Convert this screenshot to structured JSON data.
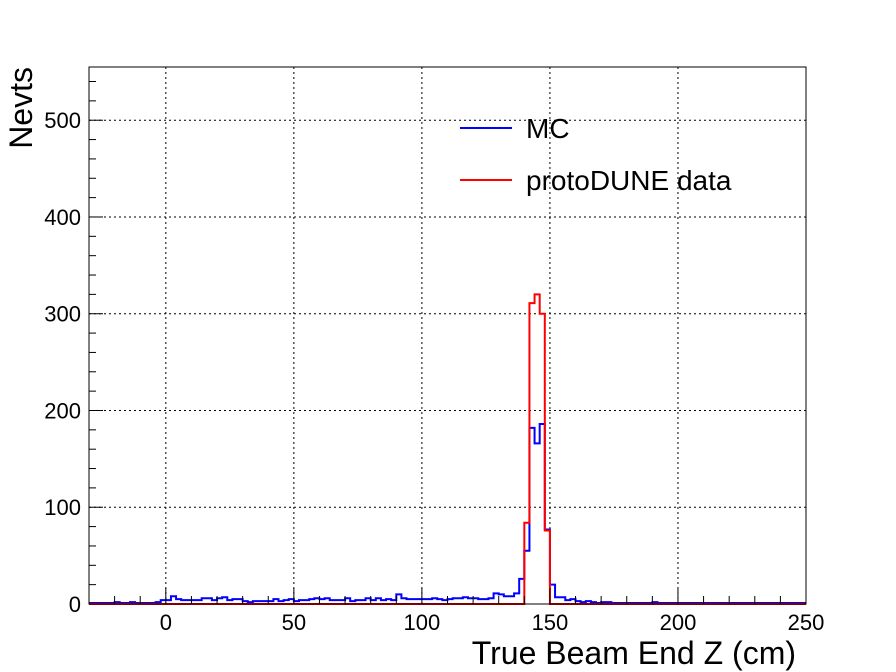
{
  "chart_data": {
    "type": "line",
    "title": "",
    "xlabel": "True Beam End Z (cm)",
    "ylabel": "Nevts",
    "xlim": [
      -30,
      250
    ],
    "ylim": [
      0,
      555
    ],
    "x_ticks": [
      0,
      50,
      100,
      150,
      200,
      250
    ],
    "x_tick_labels": [
      "0",
      "50",
      "100",
      "150",
      "200",
      "250"
    ],
    "y_ticks": [
      0,
      100,
      200,
      300,
      400,
      500
    ],
    "y_tick_labels": [
      "0",
      "100",
      "200",
      "300",
      "400",
      "500"
    ],
    "grid": true,
    "legend_position": "top-right",
    "bin_edges_start": -30,
    "bin_width": 2,
    "series": [
      {
        "name": "MC",
        "color": "#0000ff",
        "values": [
          1,
          1,
          1,
          1,
          1,
          2,
          1,
          1,
          2,
          1,
          1,
          1,
          1,
          2,
          4,
          4,
          8,
          5,
          4,
          4,
          4,
          4,
          6,
          6,
          4,
          6,
          7,
          4,
          5,
          5,
          3,
          2,
          3,
          3,
          3,
          3,
          5,
          3,
          4,
          5,
          3,
          4,
          4,
          5,
          6,
          5,
          6,
          4,
          4,
          4,
          6,
          3,
          4,
          4,
          6,
          4,
          6,
          4,
          5,
          4,
          10,
          6,
          5,
          5,
          5,
          5,
          5,
          6,
          5,
          4,
          5,
          6,
          6,
          7,
          6,
          6,
          5,
          5,
          6,
          11,
          10,
          8,
          8,
          11,
          26,
          55,
          182,
          166,
          186,
          77,
          20,
          7,
          7,
          4,
          5,
          3,
          2,
          3,
          2,
          1,
          2,
          2,
          1,
          1,
          1,
          1,
          1,
          1,
          1,
          1,
          2,
          1,
          1,
          1,
          1,
          1,
          1,
          1,
          1,
          1,
          1,
          1,
          1,
          1,
          1,
          1,
          1,
          1,
          1,
          1,
          1,
          1,
          1,
          1,
          1,
          1,
          1,
          1,
          1,
          1
        ]
      },
      {
        "name": "protoDUNE data",
        "color": "#ff0000",
        "values": [
          0,
          0,
          0,
          0,
          0,
          0,
          0,
          0,
          0,
          0,
          0,
          0,
          0,
          0,
          0,
          0,
          0,
          0,
          0,
          0,
          0,
          0,
          0,
          0,
          0,
          0,
          0,
          0,
          0,
          0,
          0,
          0,
          0,
          0,
          0,
          0,
          0,
          0,
          0,
          0,
          0,
          0,
          0,
          0,
          0,
          0,
          0,
          0,
          0,
          0,
          0,
          0,
          0,
          0,
          0,
          0,
          0,
          0,
          0,
          0,
          0,
          0,
          0,
          0,
          0,
          0,
          0,
          0,
          0,
          0,
          0,
          0,
          0,
          0,
          0,
          0,
          0,
          0,
          0,
          0,
          0,
          0,
          0,
          0,
          0,
          84,
          311,
          320,
          300,
          76,
          0,
          0,
          0,
          0,
          0,
          0,
          0,
          0,
          0,
          0,
          0,
          0,
          0,
          0,
          0,
          0,
          0,
          0,
          0,
          0,
          0,
          0,
          0,
          0,
          0,
          0,
          0,
          0,
          0,
          0,
          0,
          0,
          0,
          0,
          0,
          0,
          0,
          0,
          0,
          0,
          0,
          0,
          0,
          0,
          0,
          0,
          0,
          0,
          0,
          0
        ]
      }
    ]
  }
}
